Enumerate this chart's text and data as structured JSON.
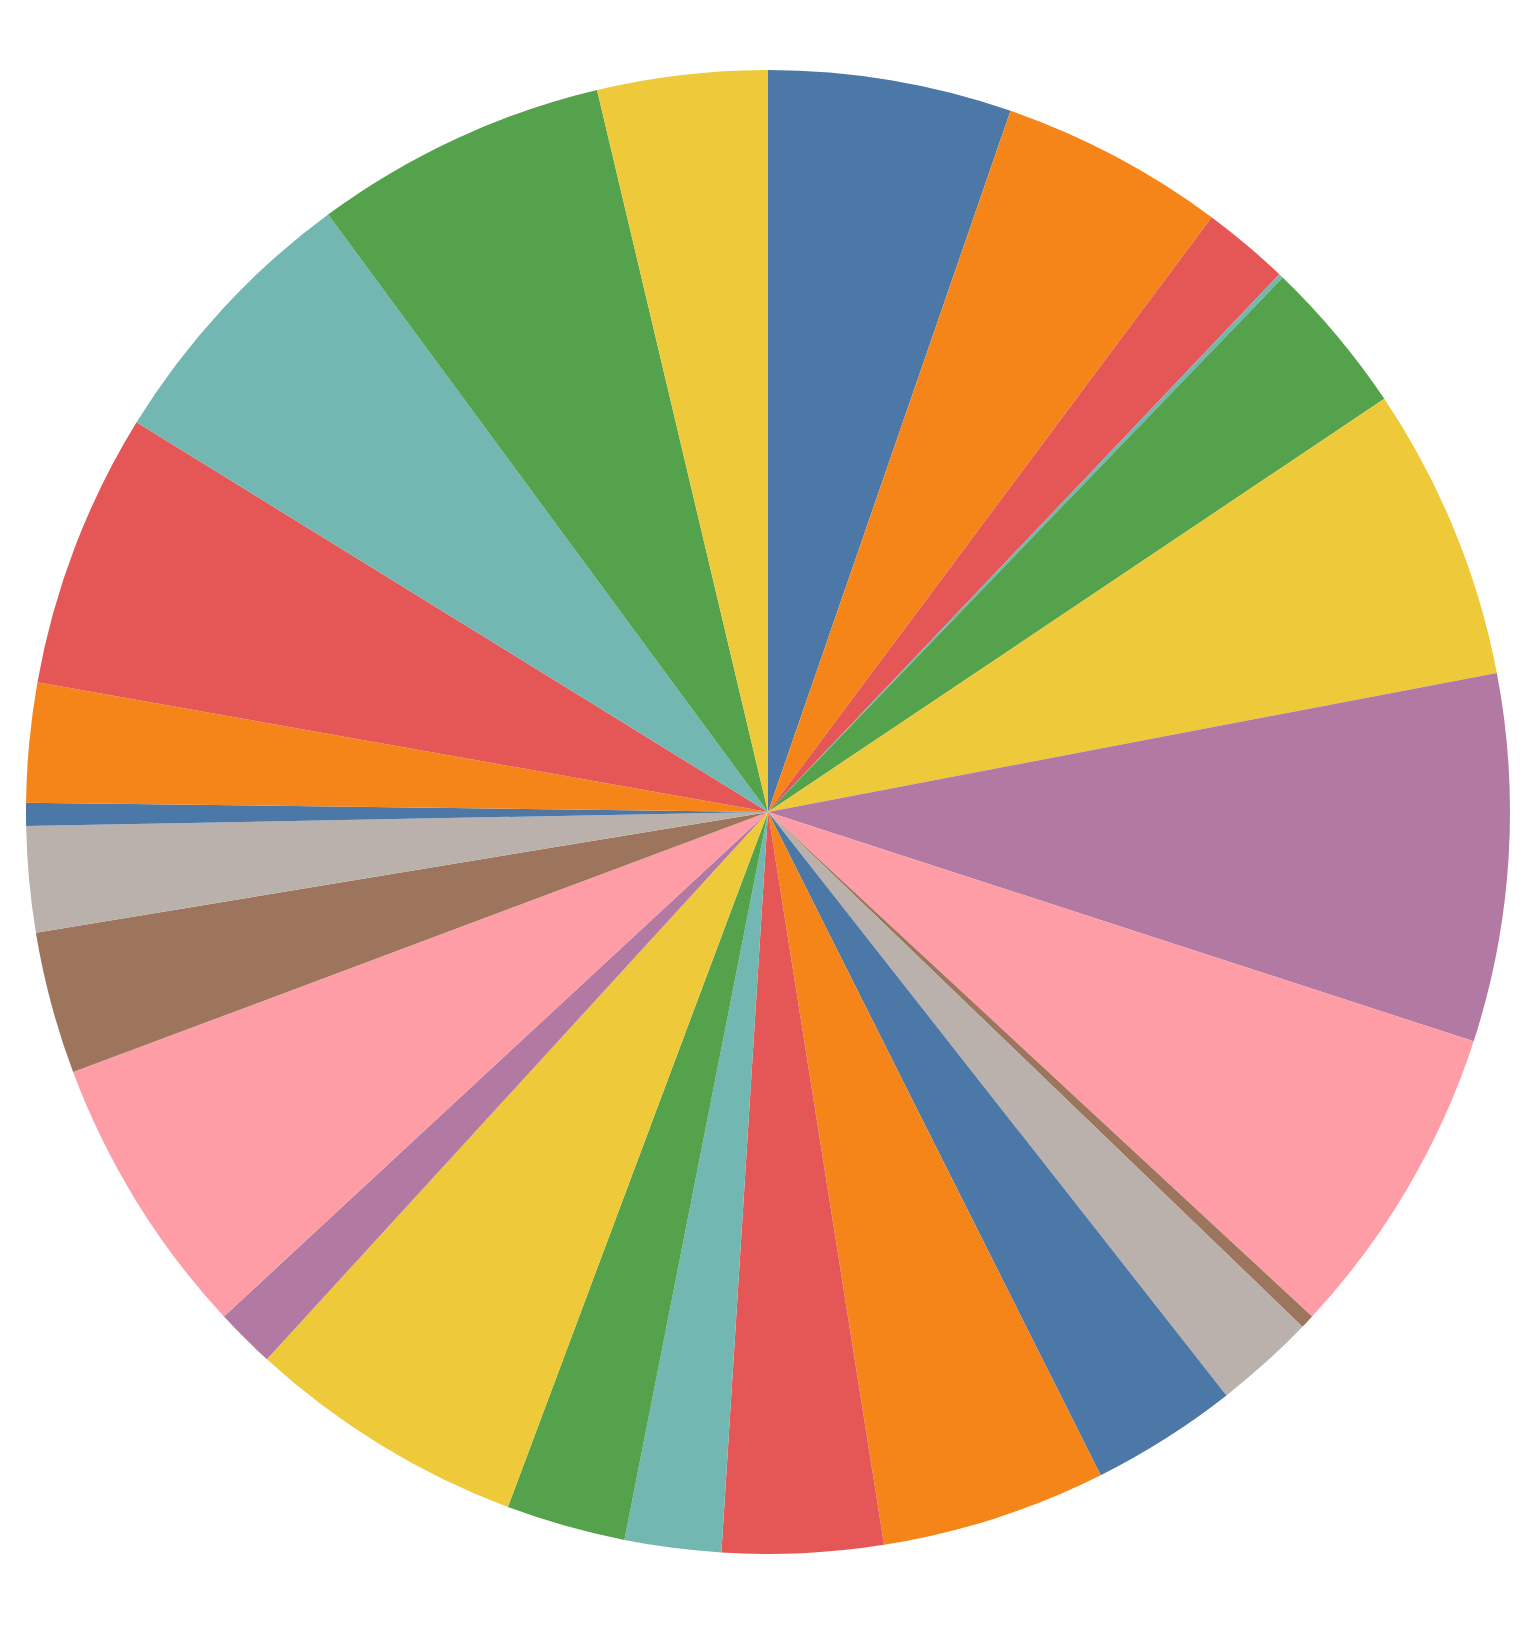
{
  "chart_data": {
    "type": "pie",
    "categories": [
      null,
      null,
      null,
      null,
      null,
      null,
      null,
      null,
      null,
      null,
      null,
      null,
      null,
      null,
      null,
      null,
      null,
      null,
      null,
      null,
      null,
      null,
      null,
      null,
      null,
      null
    ],
    "values": [
      5.3,
      4.9,
      1.9,
      0.1,
      3.4,
      6.4,
      8.0,
      6.9,
      0.3,
      2.2,
      3.2,
      4.9,
      3.5,
      2.1,
      2.6,
      6.1,
      1.3,
      6.2,
      3.1,
      2.3,
      0.5,
      2.6,
      6.0,
      6.1,
      6.4,
      3.7
    ],
    "colors": [
      "#4c78a8",
      "#f58518",
      "#e45756",
      "#72b7b2",
      "#54a24b",
      "#eeca3b",
      "#b279a2",
      "#ff9da6",
      "#9d755d",
      "#bab0ac",
      "#4c78a8",
      "#f58518",
      "#e45756",
      "#72b7b2",
      "#54a24b",
      "#eeca3b",
      "#b279a2",
      "#ff9da6",
      "#9d755d",
      "#bab0ac",
      "#4c78a8",
      "#f58518",
      "#e45756",
      "#72b7b2",
      "#54a24b",
      "#eeca3b"
    ]
  }
}
